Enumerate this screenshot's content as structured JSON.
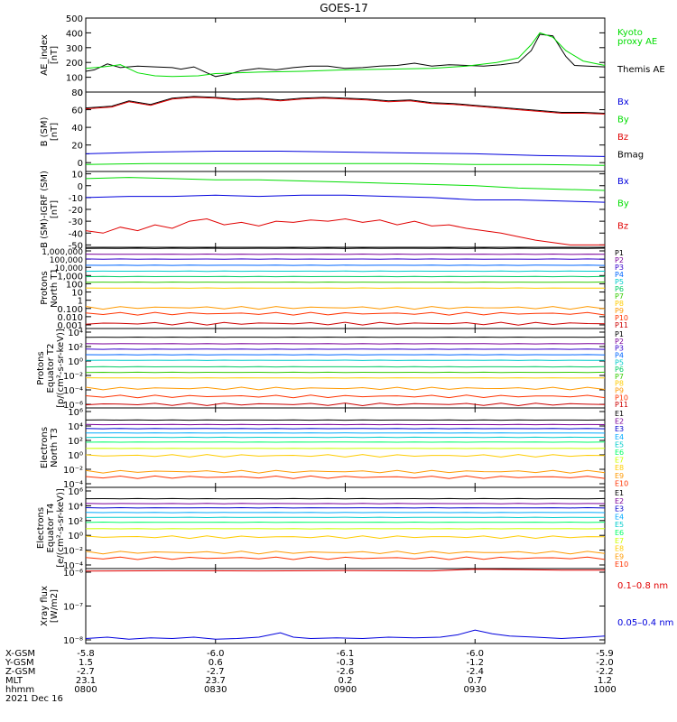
{
  "title": "GOES-17",
  "colors": {
    "black": "#000000",
    "red": "#e00000",
    "green": "#00dd00",
    "blue": "#0000dd",
    "p": [
      "#000000",
      "#7a0099",
      "#3300cc",
      "#0066ff",
      "#00cccc",
      "#00cc66",
      "#33cc00",
      "#ffcc00",
      "#ff9900",
      "#ff3300",
      "#cc0000"
    ],
    "e": [
      "#000000",
      "#7a0099",
      "#0000cc",
      "#00aaff",
      "#00cccc",
      "#00ff66",
      "#ccff00",
      "#ffcc00",
      "#ff9900",
      "#ff3300"
    ]
  },
  "x_ticks": [
    {
      "t": 0,
      "label": "0800"
    },
    {
      "t": 30,
      "label": "0830"
    },
    {
      "t": 60,
      "label": "0900"
    },
    {
      "t": 90,
      "label": "0930"
    },
    {
      "t": 120,
      "label": "1000"
    }
  ],
  "footer": {
    "row_labels": [
      "X-GSM",
      "Y-GSM",
      "Z-GSM",
      "MLT",
      "hhmm",
      "2021 Dec 16"
    ],
    "columns": [
      [
        "-5.8",
        "1.5",
        "-2.7",
        "23.1"
      ],
      [
        "-6.0",
        "0.6",
        "-2.7",
        "23.7"
      ],
      [
        "-6.1",
        "-0.3",
        "-2.6",
        "0.2"
      ],
      [
        "-6.0",
        "-1.2",
        "-2.4",
        "0.7"
      ],
      [
        "-5.9",
        "-2.0",
        "-2.2",
        "1.2"
      ]
    ]
  },
  "panels": [
    {
      "id": "ae",
      "ylabel": [
        "AE_index",
        "[nT]"
      ],
      "scale": "linear",
      "ylim": [
        0,
        500
      ],
      "yticks": [
        "0",
        "100",
        "200",
        "300",
        "400",
        "500"
      ],
      "legend": [
        {
          "text": "Kyoto",
          "color": "#00dd00"
        },
        {
          "text": "proxy AE",
          "color": "#00dd00"
        },
        {
          "text": "Themis AE",
          "color": "#000000"
        }
      ]
    },
    {
      "id": "bsm",
      "ylabel": [
        "B (SM)",
        "[nT]"
      ],
      "scale": "linear",
      "ylim": [
        -10,
        80
      ],
      "yticks": [
        "0",
        "20",
        "40",
        "60",
        "80"
      ],
      "extra_yticks": [
        "10",
        "-10"
      ],
      "legend": [
        {
          "text": "Bx",
          "color": "#0000dd"
        },
        {
          "text": "By",
          "color": "#00dd00"
        },
        {
          "text": "Bz",
          "color": "#e00000"
        },
        {
          "text": "Bmag",
          "color": "#000000"
        }
      ]
    },
    {
      "id": "bigrf",
      "ylabel": [
        "B (SM)-IGRF (SM)",
        "[nT]"
      ],
      "scale": "linear",
      "ylim": [
        -52,
        12
      ],
      "yticks": [
        "10",
        "0",
        "-10",
        "-20",
        "-30",
        "-40",
        "-50"
      ],
      "legend": [
        {
          "text": "Bx",
          "color": "#0000dd"
        },
        {
          "text": "By",
          "color": "#00dd00"
        },
        {
          "text": "Bz",
          "color": "#e00000"
        }
      ]
    },
    {
      "id": "pt1",
      "ylabel": [
        "Protons",
        "North T1"
      ],
      "scale": "log",
      "ylim": [
        0.0005,
        2000000
      ],
      "yticks": [
        "1,000,000",
        "100,000",
        "10,000",
        "1,000",
        "100",
        "10",
        "1",
        "0.100",
        "0.010",
        "0.001"
      ],
      "channels": [
        "P1",
        "P2",
        "P3",
        "P4",
        "P5",
        "P6",
        "P7",
        "P8",
        "P9",
        "P10",
        "P11"
      ]
    },
    {
      "id": "pt2",
      "ylabel": [
        "Protons",
        "Equator T2",
        "[p/(cm²-s-sr-keV)]"
      ],
      "scale": "log",
      "ylim": [
        1e-06,
        10000
      ],
      "yticks": [
        "10⁴",
        "10²",
        "10⁰",
        "10⁻²",
        "10⁻⁴",
        "10⁻⁶"
      ],
      "channels": [
        "P1",
        "P2",
        "P3",
        "P4",
        "P5",
        "P6",
        "P7",
        "P8",
        "P9",
        "P10",
        "P11"
      ]
    },
    {
      "id": "et3",
      "ylabel": [
        "Electrons",
        "North T3"
      ],
      "scale": "log",
      "ylim": [
        0.0001,
        1000000
      ],
      "yticks": [
        "10⁶",
        "10⁴",
        "10²",
        "10⁰",
        "10⁻²",
        "10⁻⁴"
      ],
      "channels": [
        "E1",
        "E2",
        "E3",
        "E4",
        "E5",
        "E6",
        "E7",
        "E8",
        "E9",
        "E10"
      ]
    },
    {
      "id": "et4",
      "ylabel": [
        "Electrons",
        "Equator T4",
        "[e/(cm²-s-sr-keV)]"
      ],
      "scale": "log",
      "ylim": [
        0.0001,
        1000000
      ],
      "yticks": [
        "10⁶",
        "10⁴",
        "10²",
        "10⁰",
        "10⁻²",
        "10⁻⁴"
      ],
      "channels": [
        "E1",
        "E2",
        "E3",
        "E4",
        "E5",
        "E6",
        "E7",
        "E8",
        "E9",
        "E10"
      ]
    },
    {
      "id": "xray",
      "ylabel": [
        "Xray flux",
        "[W/m2]"
      ],
      "scale": "log",
      "ylim": [
        8e-09,
        1e-06
      ],
      "yticks": [
        "10⁻⁶",
        "10⁻⁷",
        "10⁻⁸"
      ],
      "legend": [
        {
          "text": "0.1–0.8 nm",
          "color": "#e00000"
        },
        {
          "text": "0.05–0.4 nm",
          "color": "#0000dd"
        }
      ]
    }
  ],
  "chart_data": {
    "type": "line",
    "title": "GOES-17",
    "x_unit": "minutes after 0800 UT",
    "xlim": [
      0,
      120
    ],
    "series": {
      "ae": {
        "themis": [
          [
            0,
            140
          ],
          [
            2,
            150
          ],
          [
            5,
            190
          ],
          [
            8,
            165
          ],
          [
            12,
            175
          ],
          [
            16,
            170
          ],
          [
            20,
            165
          ],
          [
            22,
            155
          ],
          [
            25,
            170
          ],
          [
            28,
            130
          ],
          [
            30,
            105
          ],
          [
            33,
            120
          ],
          [
            36,
            145
          ],
          [
            40,
            160
          ],
          [
            44,
            150
          ],
          [
            48,
            165
          ],
          [
            52,
            175
          ],
          [
            56,
            175
          ],
          [
            60,
            160
          ],
          [
            64,
            165
          ],
          [
            68,
            175
          ],
          [
            72,
            180
          ],
          [
            76,
            195
          ],
          [
            80,
            175
          ],
          [
            84,
            185
          ],
          [
            88,
            180
          ],
          [
            92,
            175
          ],
          [
            96,
            185
          ],
          [
            100,
            200
          ],
          [
            103,
            280
          ],
          [
            105,
            390
          ],
          [
            108,
            380
          ],
          [
            111,
            240
          ],
          [
            113,
            180
          ],
          [
            116,
            175
          ],
          [
            120,
            170
          ]
        ],
        "kyoto": [
          [
            0,
            160
          ],
          [
            4,
            170
          ],
          [
            8,
            185
          ],
          [
            12,
            130
          ],
          [
            16,
            110
          ],
          [
            20,
            105
          ],
          [
            26,
            110
          ],
          [
            30,
            125
          ],
          [
            40,
            135
          ],
          [
            50,
            140
          ],
          [
            60,
            150
          ],
          [
            70,
            155
          ],
          [
            80,
            160
          ],
          [
            88,
            175
          ],
          [
            95,
            200
          ],
          [
            100,
            230
          ],
          [
            103,
            320
          ],
          [
            105,
            400
          ],
          [
            108,
            370
          ],
          [
            111,
            280
          ],
          [
            115,
            210
          ],
          [
            120,
            180
          ]
        ]
      },
      "bsm": {
        "bmag": [
          [
            0,
            62
          ],
          [
            6,
            64
          ],
          [
            10,
            70
          ],
          [
            15,
            66
          ],
          [
            20,
            73
          ],
          [
            25,
            75
          ],
          [
            30,
            74
          ],
          [
            35,
            72
          ],
          [
            40,
            73
          ],
          [
            45,
            71
          ],
          [
            50,
            73
          ],
          [
            55,
            74
          ],
          [
            60,
            73
          ],
          [
            65,
            72
          ],
          [
            70,
            70
          ],
          [
            75,
            71
          ],
          [
            80,
            68
          ],
          [
            85,
            67
          ],
          [
            90,
            65
          ],
          [
            95,
            63
          ],
          [
            100,
            61
          ],
          [
            105,
            59
          ],
          [
            110,
            57
          ],
          [
            115,
            57
          ],
          [
            120,
            56
          ]
        ],
        "bz": [
          [
            0,
            61
          ],
          [
            6,
            63
          ],
          [
            10,
            69
          ],
          [
            15,
            65
          ],
          [
            20,
            72
          ],
          [
            25,
            74
          ],
          [
            30,
            73
          ],
          [
            35,
            71
          ],
          [
            40,
            72
          ],
          [
            45,
            70
          ],
          [
            50,
            72
          ],
          [
            55,
            73
          ],
          [
            60,
            72
          ],
          [
            65,
            71
          ],
          [
            70,
            69
          ],
          [
            75,
            70
          ],
          [
            80,
            67
          ],
          [
            85,
            66
          ],
          [
            90,
            64
          ],
          [
            95,
            62
          ],
          [
            100,
            60
          ],
          [
            105,
            58
          ],
          [
            110,
            56
          ],
          [
            115,
            56
          ],
          [
            120,
            55
          ]
        ],
        "bx": [
          [
            0,
            10
          ],
          [
            15,
            12
          ],
          [
            30,
            13
          ],
          [
            45,
            13
          ],
          [
            60,
            12
          ],
          [
            75,
            11
          ],
          [
            90,
            10
          ],
          [
            105,
            8
          ],
          [
            120,
            7
          ]
        ],
        "by": [
          [
            0,
            -2
          ],
          [
            15,
            -1
          ],
          [
            30,
            -1
          ],
          [
            45,
            -1
          ],
          [
            60,
            -1
          ],
          [
            75,
            -1
          ],
          [
            90,
            -2
          ],
          [
            105,
            -2
          ],
          [
            120,
            -3
          ]
        ]
      },
      "bigrf": {
        "by": [
          [
            0,
            6
          ],
          [
            10,
            7
          ],
          [
            20,
            6
          ],
          [
            30,
            5
          ],
          [
            40,
            5
          ],
          [
            50,
            4
          ],
          [
            60,
            3
          ],
          [
            70,
            2
          ],
          [
            80,
            1
          ],
          [
            90,
            0
          ],
          [
            100,
            -2
          ],
          [
            110,
            -3
          ],
          [
            120,
            -4
          ]
        ],
        "bx": [
          [
            0,
            -10
          ],
          [
            10,
            -9
          ],
          [
            20,
            -9
          ],
          [
            30,
            -8
          ],
          [
            40,
            -9
          ],
          [
            50,
            -8
          ],
          [
            60,
            -8
          ],
          [
            70,
            -9
          ],
          [
            80,
            -10
          ],
          [
            90,
            -12
          ],
          [
            100,
            -12
          ],
          [
            110,
            -13
          ],
          [
            120,
            -14
          ]
        ],
        "bz": [
          [
            0,
            -38
          ],
          [
            4,
            -40
          ],
          [
            8,
            -35
          ],
          [
            12,
            -38
          ],
          [
            16,
            -33
          ],
          [
            20,
            -36
          ],
          [
            24,
            -30
          ],
          [
            28,
            -28
          ],
          [
            32,
            -33
          ],
          [
            36,
            -31
          ],
          [
            40,
            -34
          ],
          [
            44,
            -30
          ],
          [
            48,
            -31
          ],
          [
            52,
            -29
          ],
          [
            56,
            -30
          ],
          [
            60,
            -28
          ],
          [
            64,
            -31
          ],
          [
            68,
            -29
          ],
          [
            72,
            -33
          ],
          [
            76,
            -30
          ],
          [
            80,
            -34
          ],
          [
            84,
            -33
          ],
          [
            88,
            -36
          ],
          [
            92,
            -38
          ],
          [
            96,
            -40
          ],
          [
            100,
            -43
          ],
          [
            104,
            -46
          ],
          [
            108,
            -48
          ],
          [
            112,
            -50
          ],
          [
            120,
            -50
          ]
        ]
      },
      "pt1": {
        "levels": [
          1500000,
          300000,
          80000,
          15000,
          3000,
          700,
          150,
          30,
          0.15,
          0.03,
          0.002
        ]
      },
      "pt2": {
        "levels": [
          800,
          120,
          25,
          5,
          1,
          0.15,
          0.03,
          0.006,
          0.0003,
          3e-05,
          3e-06
        ]
      },
      "et3": {
        "levels": [
          30000,
          8000,
          2500,
          700,
          200,
          50,
          8,
          1,
          0.01,
          0.002
        ]
      },
      "et4": {
        "levels": [
          40000,
          10000,
          3000,
          800,
          200,
          50,
          8,
          0.8,
          0.01,
          0.002
        ]
      },
      "xray": {
        "long": [
          [
            0,
            8.5e-07
          ],
          [
            20,
            8.7e-07
          ],
          [
            40,
            8.6e-07
          ],
          [
            60,
            8.8e-07
          ],
          [
            80,
            8.6e-07
          ],
          [
            90,
            9.6e-07
          ],
          [
            100,
            9.4e-07
          ],
          [
            110,
            9e-07
          ],
          [
            120,
            9e-07
          ]
        ],
        "short": [
          [
            0,
            1.1e-08
          ],
          [
            5,
            1.2e-08
          ],
          [
            10,
            1.05e-08
          ],
          [
            15,
            1.15e-08
          ],
          [
            20,
            1.1e-08
          ],
          [
            25,
            1.2e-08
          ],
          [
            30,
            1.05e-08
          ],
          [
            35,
            1.1e-08
          ],
          [
            40,
            1.2e-08
          ],
          [
            45,
            1.6e-08
          ],
          [
            48,
            1.2e-08
          ],
          [
            52,
            1.1e-08
          ],
          [
            58,
            1.15e-08
          ],
          [
            64,
            1.1e-08
          ],
          [
            70,
            1.2e-08
          ],
          [
            76,
            1.15e-08
          ],
          [
            82,
            1.2e-08
          ],
          [
            86,
            1.4e-08
          ],
          [
            90,
            1.9e-08
          ],
          [
            94,
            1.5e-08
          ],
          [
            98,
            1.3e-08
          ],
          [
            104,
            1.2e-08
          ],
          [
            110,
            1.1e-08
          ],
          [
            116,
            1.2e-08
          ],
          [
            120,
            1.3e-08
          ]
        ]
      }
    }
  }
}
